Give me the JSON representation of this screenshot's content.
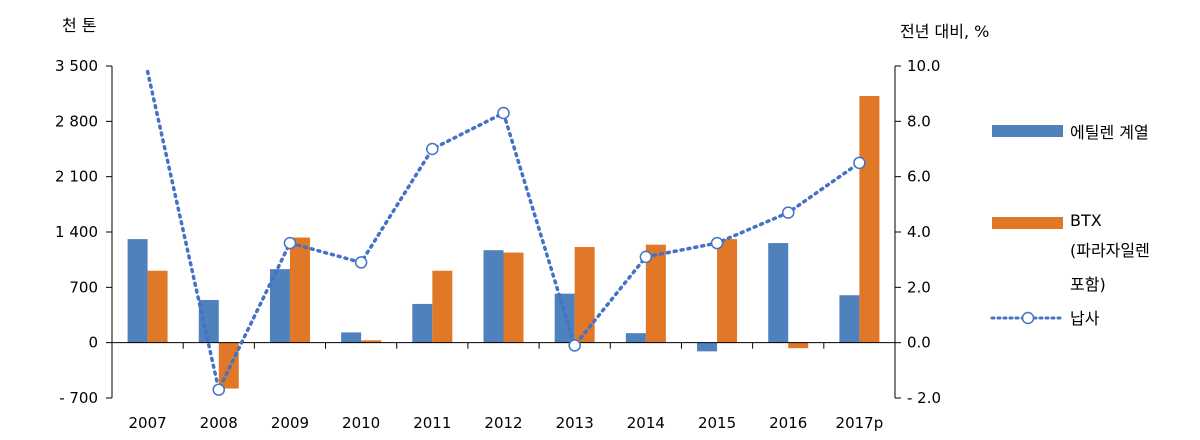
{
  "chart_data": {
    "type": "bar",
    "categories": [
      "2007",
      "2008",
      "2009",
      "2010",
      "2011",
      "2012",
      "2013",
      "2014",
      "2015",
      "2016",
      "2017p"
    ],
    "y_left": {
      "unit_label": "천 톤",
      "ylim": [
        -700,
        3500
      ],
      "ticks": [
        3500,
        2800,
        2100,
        1400,
        700,
        0,
        -700
      ],
      "tick_labels": [
        "3 500",
        "2 800",
        "2 100",
        "1 400",
        "700",
        "0",
        "- 700"
      ]
    },
    "y_right": {
      "unit_label": "전년 대비, %",
      "ylim": [
        -2.0,
        10.0
      ],
      "ticks": [
        10.0,
        8.0,
        6.0,
        4.0,
        2.0,
        0.0,
        -2.0
      ],
      "tick_labels": [
        "10.0",
        "8.0",
        "6.0",
        "4.0",
        "2.0",
        "0.0",
        "- 2.0"
      ]
    },
    "series": [
      {
        "name": "에틸렌 계열",
        "type": "bar",
        "axis": "left",
        "color": "#4f81bd",
        "values": [
          1310,
          540,
          930,
          130,
          490,
          1170,
          620,
          120,
          -110,
          1260,
          600
        ]
      },
      {
        "name": "BTX",
        "name_line2": "(파라자일렌",
        "name_line3": "포함)",
        "type": "bar",
        "axis": "left",
        "color": "#e07828",
        "values": [
          910,
          -580,
          1330,
          30,
          910,
          1140,
          1210,
          1240,
          1310,
          -70,
          3120
        ]
      },
      {
        "name": "납사",
        "type": "line",
        "axis": "right",
        "color": "#4473c5",
        "dotted": true,
        "markers": [
          false,
          true,
          true,
          true,
          true,
          true,
          true,
          true,
          true,
          true,
          true
        ],
        "values": [
          9.8,
          -1.7,
          3.6,
          2.9,
          7.0,
          8.3,
          -0.1,
          3.1,
          3.6,
          4.7,
          6.5
        ]
      }
    ],
    "legend_position": "right",
    "grid": false
  }
}
